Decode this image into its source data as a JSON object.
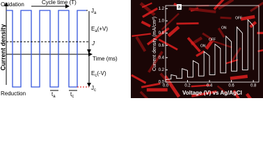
{
  "diagram": {
    "oxidation": "Oxidation",
    "reduction": "Reduction",
    "y_label": "Current density",
    "cycle": "Cycle time (T)",
    "time": "Time (ms)",
    "ja": {
      "main": "J",
      "sub": "a"
    },
    "ea": {
      "main": "E",
      "sub": "a",
      "tail": "(+V)"
    },
    "j": "J",
    "ec": {
      "main": "E",
      "sub": "c",
      "tail": "(-V)"
    },
    "jc": {
      "main": "J",
      "sub": "c"
    },
    "ta": {
      "main": "t",
      "sub": "a"
    },
    "tc": {
      "main": "t",
      "sub": "c"
    }
  },
  "chart_data": {
    "type": "line",
    "panel_label": "a",
    "annotations": [
      "ON",
      "OFF",
      "ON",
      "OFF"
    ],
    "x_label": "Voltage (V) vs Ag/AgCl",
    "y_label": "Current density (mA/cm²)",
    "xlim": [
      0,
      0.85
    ],
    "ylim": [
      0,
      1.25
    ],
    "xticks": [
      {
        "value": 0,
        "label": "0.0"
      },
      0.2,
      0.4,
      0.6,
      0.8
    ],
    "yticks": [
      {
        "value": 0,
        "label": "0.0"
      },
      0.2,
      0.4,
      0.6,
      0.8,
      {
        "value": 1,
        "label": "1.0"
      },
      1.2
    ],
    "x": [
      0,
      0.05,
      0.05,
      0.1,
      0.1,
      0.15,
      0.15,
      0.2,
      0.2,
      0.25,
      0.25,
      0.3,
      0.3,
      0.35,
      0.35,
      0.4,
      0.4,
      0.45,
      0.45,
      0.5,
      0.5,
      0.55,
      0.55,
      0.6,
      0.6,
      0.65,
      0.65,
      0.7,
      0.7,
      0.75,
      0.75,
      0.8,
      0.8
    ],
    "series": [
      {
        "color": "#ffffff",
        "values": [
          0.04,
          0.05,
          0.12,
          0.1,
          0.06,
          0.06,
          0.22,
          0.19,
          0.08,
          0.08,
          0.35,
          0.3,
          0.1,
          0.1,
          0.5,
          0.43,
          0.12,
          0.12,
          0.62,
          0.55,
          0.15,
          0.15,
          0.75,
          0.66,
          0.18,
          0.18,
          0.9,
          0.8,
          0.2,
          0.2,
          1.02,
          0.92,
          0.2
        ]
      }
    ]
  }
}
